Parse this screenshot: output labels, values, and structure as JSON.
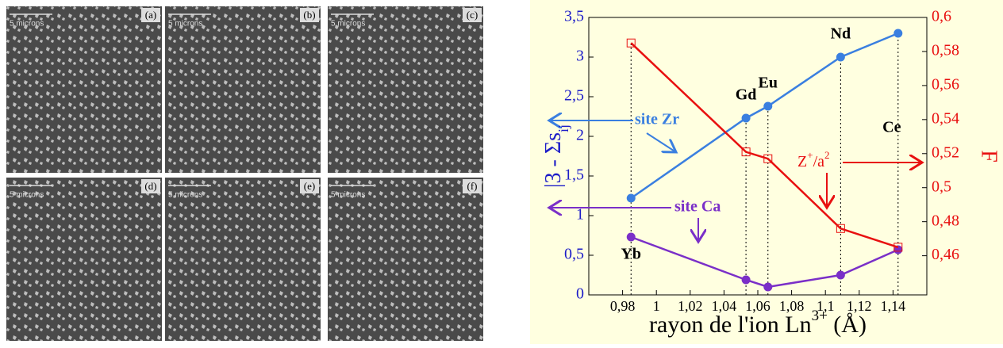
{
  "images": [
    {
      "label": "(a)",
      "scale": "5 microns"
    },
    {
      "label": "(b)",
      "scale": "5 microns"
    },
    {
      "label": "(c)",
      "scale": "5 microns"
    },
    {
      "label": "(d)",
      "scale": "5 microns"
    },
    {
      "label": "(e)",
      "scale": "5 microns"
    },
    {
      "label": "(f)",
      "scale": "5 microns"
    }
  ],
  "chart_data": {
    "type": "line",
    "x_label": "rayon de l'ion Ln",
    "x_label_sup": "3+",
    "x_label_end": " (Å)",
    "y_label": "|3 - Σs",
    "y_label_sub": "ij",
    "y2_label": "F",
    "x": [
      0.985,
      1.053,
      1.066,
      1.109,
      1.143
    ],
    "point_labels": [
      "Yb",
      "Gd",
      "Eu",
      "Nd",
      "Ce"
    ],
    "series": [
      {
        "name": "site Zr",
        "color": "#3a7fe0",
        "values": [
          1.22,
          2.23,
          2.38,
          3.0,
          3.3
        ]
      },
      {
        "name": "site Ca",
        "color": "#7a2fc8",
        "values": [
          0.73,
          0.19,
          0.1,
          0.25,
          0.57
        ]
      },
      {
        "name": "Z",
        "name_sup": "+",
        "name_mid": "/a",
        "name_sup2": "2",
        "color": "#e81010",
        "axis": "y2",
        "values": [
          0.585,
          0.521,
          0.517,
          0.476,
          0.465
        ]
      }
    ],
    "xlim": [
      0.96,
      1.16
    ],
    "xticks": [
      {
        "value": 0.98,
        "label": "0,98"
      },
      1,
      {
        "value": 1.02,
        "label": "1,02"
      },
      {
        "value": 1.04,
        "label": "1,04"
      },
      {
        "value": 1.06,
        "label": "1,06"
      },
      {
        "value": 1.08,
        "label": "1,08"
      },
      {
        "value": 1.1,
        "label": "1,1"
      },
      {
        "value": 1.12,
        "label": "1,12"
      },
      {
        "value": 1.14,
        "label": "1,14"
      }
    ],
    "ylim": [
      0,
      3.5
    ],
    "yticks": [
      0,
      {
        "value": 0.5,
        "label": "0,5"
      },
      1,
      {
        "value": 1.5,
        "label": "1,5"
      },
      2,
      {
        "value": 2.5,
        "label": "2,5"
      },
      3,
      {
        "value": 3.5,
        "label": "3,5"
      }
    ],
    "y2lim": [
      0.437,
      0.6
    ],
    "y2ticks": [
      {
        "value": 0.46,
        "label": "0,46"
      },
      {
        "value": 0.48,
        "label": "0,48"
      },
      {
        "value": 0.5,
        "label": "0,5"
      },
      {
        "value": 0.52,
        "label": "0,52"
      },
      {
        "value": 0.54,
        "label": "0,54"
      },
      {
        "value": 0.56,
        "label": "0,56"
      },
      {
        "value": 0.58,
        "label": "0,58"
      },
      {
        "value": 0.6,
        "label": "0,6"
      }
    ]
  }
}
